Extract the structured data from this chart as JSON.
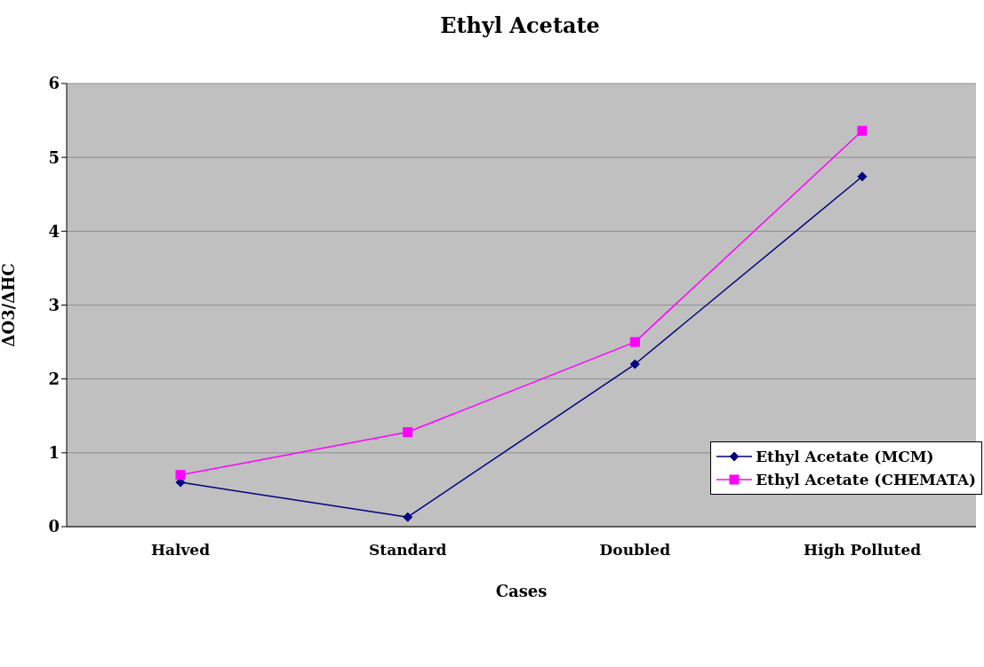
{
  "chart_data": {
    "type": "line",
    "title": "Ethyl Acetate",
    "xlabel": "Cases",
    "ylabel": "ΔO3/ΔHC",
    "categories": [
      "Halved",
      "Standard",
      "Doubled",
      "High Polluted"
    ],
    "series": [
      {
        "name": "Ethyl Acetate (MCM)",
        "color": "#000080",
        "marker": "diamond",
        "values": [
          0.6,
          0.13,
          2.2,
          4.74
        ]
      },
      {
        "name": "Ethyl Acetate (CHEMATA)",
        "color": "#ff00ff",
        "marker": "square",
        "values": [
          0.7,
          1.28,
          2.5,
          5.36
        ]
      }
    ],
    "ylim": [
      0,
      6
    ],
    "yticks": [
      0,
      1,
      2,
      3,
      4,
      5,
      6
    ],
    "grid": "y",
    "legend": "right"
  }
}
